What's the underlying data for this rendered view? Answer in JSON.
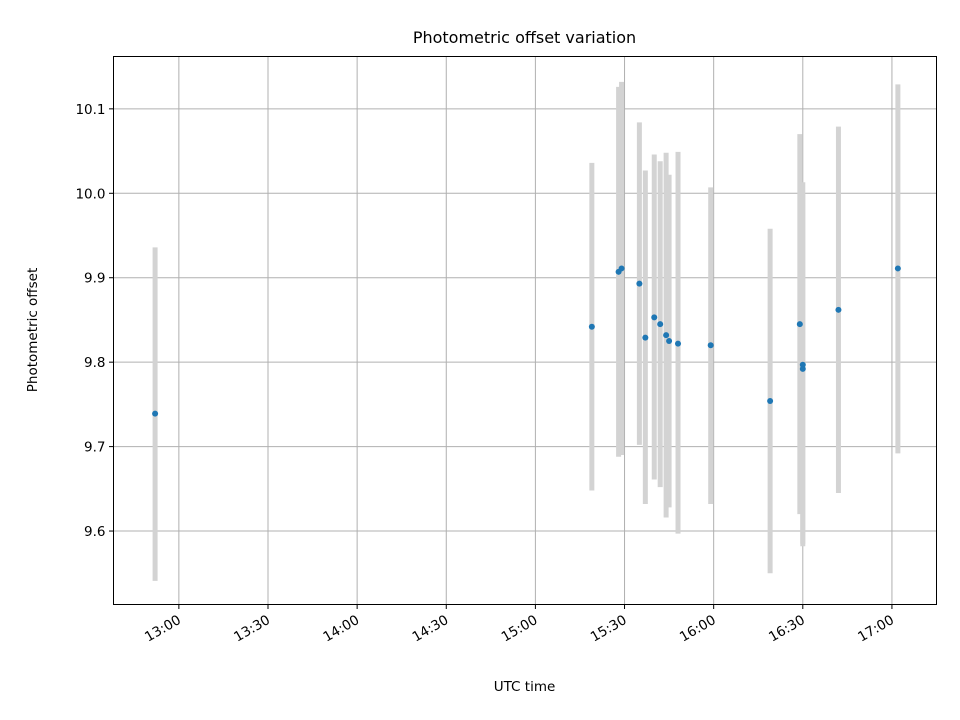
{
  "chart_data": {
    "type": "scatter",
    "title": "Photometric offset variation",
    "xlabel": "UTC time",
    "ylabel": "Photometric offset",
    "x_ticks": [
      "13:00",
      "13:30",
      "14:00",
      "14:30",
      "15:00",
      "15:30",
      "16:00",
      "16:30",
      "17:00"
    ],
    "y_ticks": [
      9.6,
      9.7,
      9.8,
      9.9,
      10.0,
      10.1
    ],
    "y_tick_labels": [
      "9.6",
      "9.7",
      "9.8",
      "9.9",
      "10.0",
      "10.1"
    ],
    "xlim": [
      "12:38",
      "17:15"
    ],
    "ylim": [
      9.513,
      10.162
    ],
    "grid": true,
    "marker_color": "#1f77b4",
    "errorbar_color": "#d3d3d3",
    "points": [
      {
        "x": "12:52",
        "y": 9.739,
        "ylo": 9.541,
        "yhi": 9.936
      },
      {
        "x": "15:19",
        "y": 9.842,
        "ylo": 9.648,
        "yhi": 10.036
      },
      {
        "x": "15:28",
        "y": 9.907,
        "ylo": 9.688,
        "yhi": 10.126
      },
      {
        "x": "15:29",
        "y": 9.911,
        "ylo": 9.69,
        "yhi": 10.132
      },
      {
        "x": "15:35",
        "y": 9.893,
        "ylo": 9.702,
        "yhi": 10.084
      },
      {
        "x": "15:37",
        "y": 9.829,
        "ylo": 9.632,
        "yhi": 10.027
      },
      {
        "x": "15:40",
        "y": 9.853,
        "ylo": 9.661,
        "yhi": 10.046
      },
      {
        "x": "15:42",
        "y": 9.845,
        "ylo": 9.652,
        "yhi": 10.038
      },
      {
        "x": "15:44",
        "y": 9.832,
        "ylo": 9.616,
        "yhi": 10.048
      },
      {
        "x": "15:45",
        "y": 9.825,
        "ylo": 9.628,
        "yhi": 10.022
      },
      {
        "x": "15:48",
        "y": 9.822,
        "ylo": 9.597,
        "yhi": 10.049
      },
      {
        "x": "15:59",
        "y": 9.82,
        "ylo": 9.632,
        "yhi": 10.007
      },
      {
        "x": "16:19",
        "y": 9.754,
        "ylo": 9.55,
        "yhi": 9.958
      },
      {
        "x": "16:29",
        "y": 9.845,
        "ylo": 9.62,
        "yhi": 10.07
      },
      {
        "x": "16:30",
        "y": 9.797,
        "ylo": 9.582,
        "yhi": 10.013
      },
      {
        "x": "16:30",
        "y": 9.792,
        "ylo": 9.585,
        "yhi": 9.999
      },
      {
        "x": "16:42",
        "y": 9.862,
        "ylo": 9.645,
        "yhi": 10.079
      },
      {
        "x": "17:02",
        "y": 9.911,
        "ylo": 9.692,
        "yhi": 10.129
      }
    ]
  }
}
